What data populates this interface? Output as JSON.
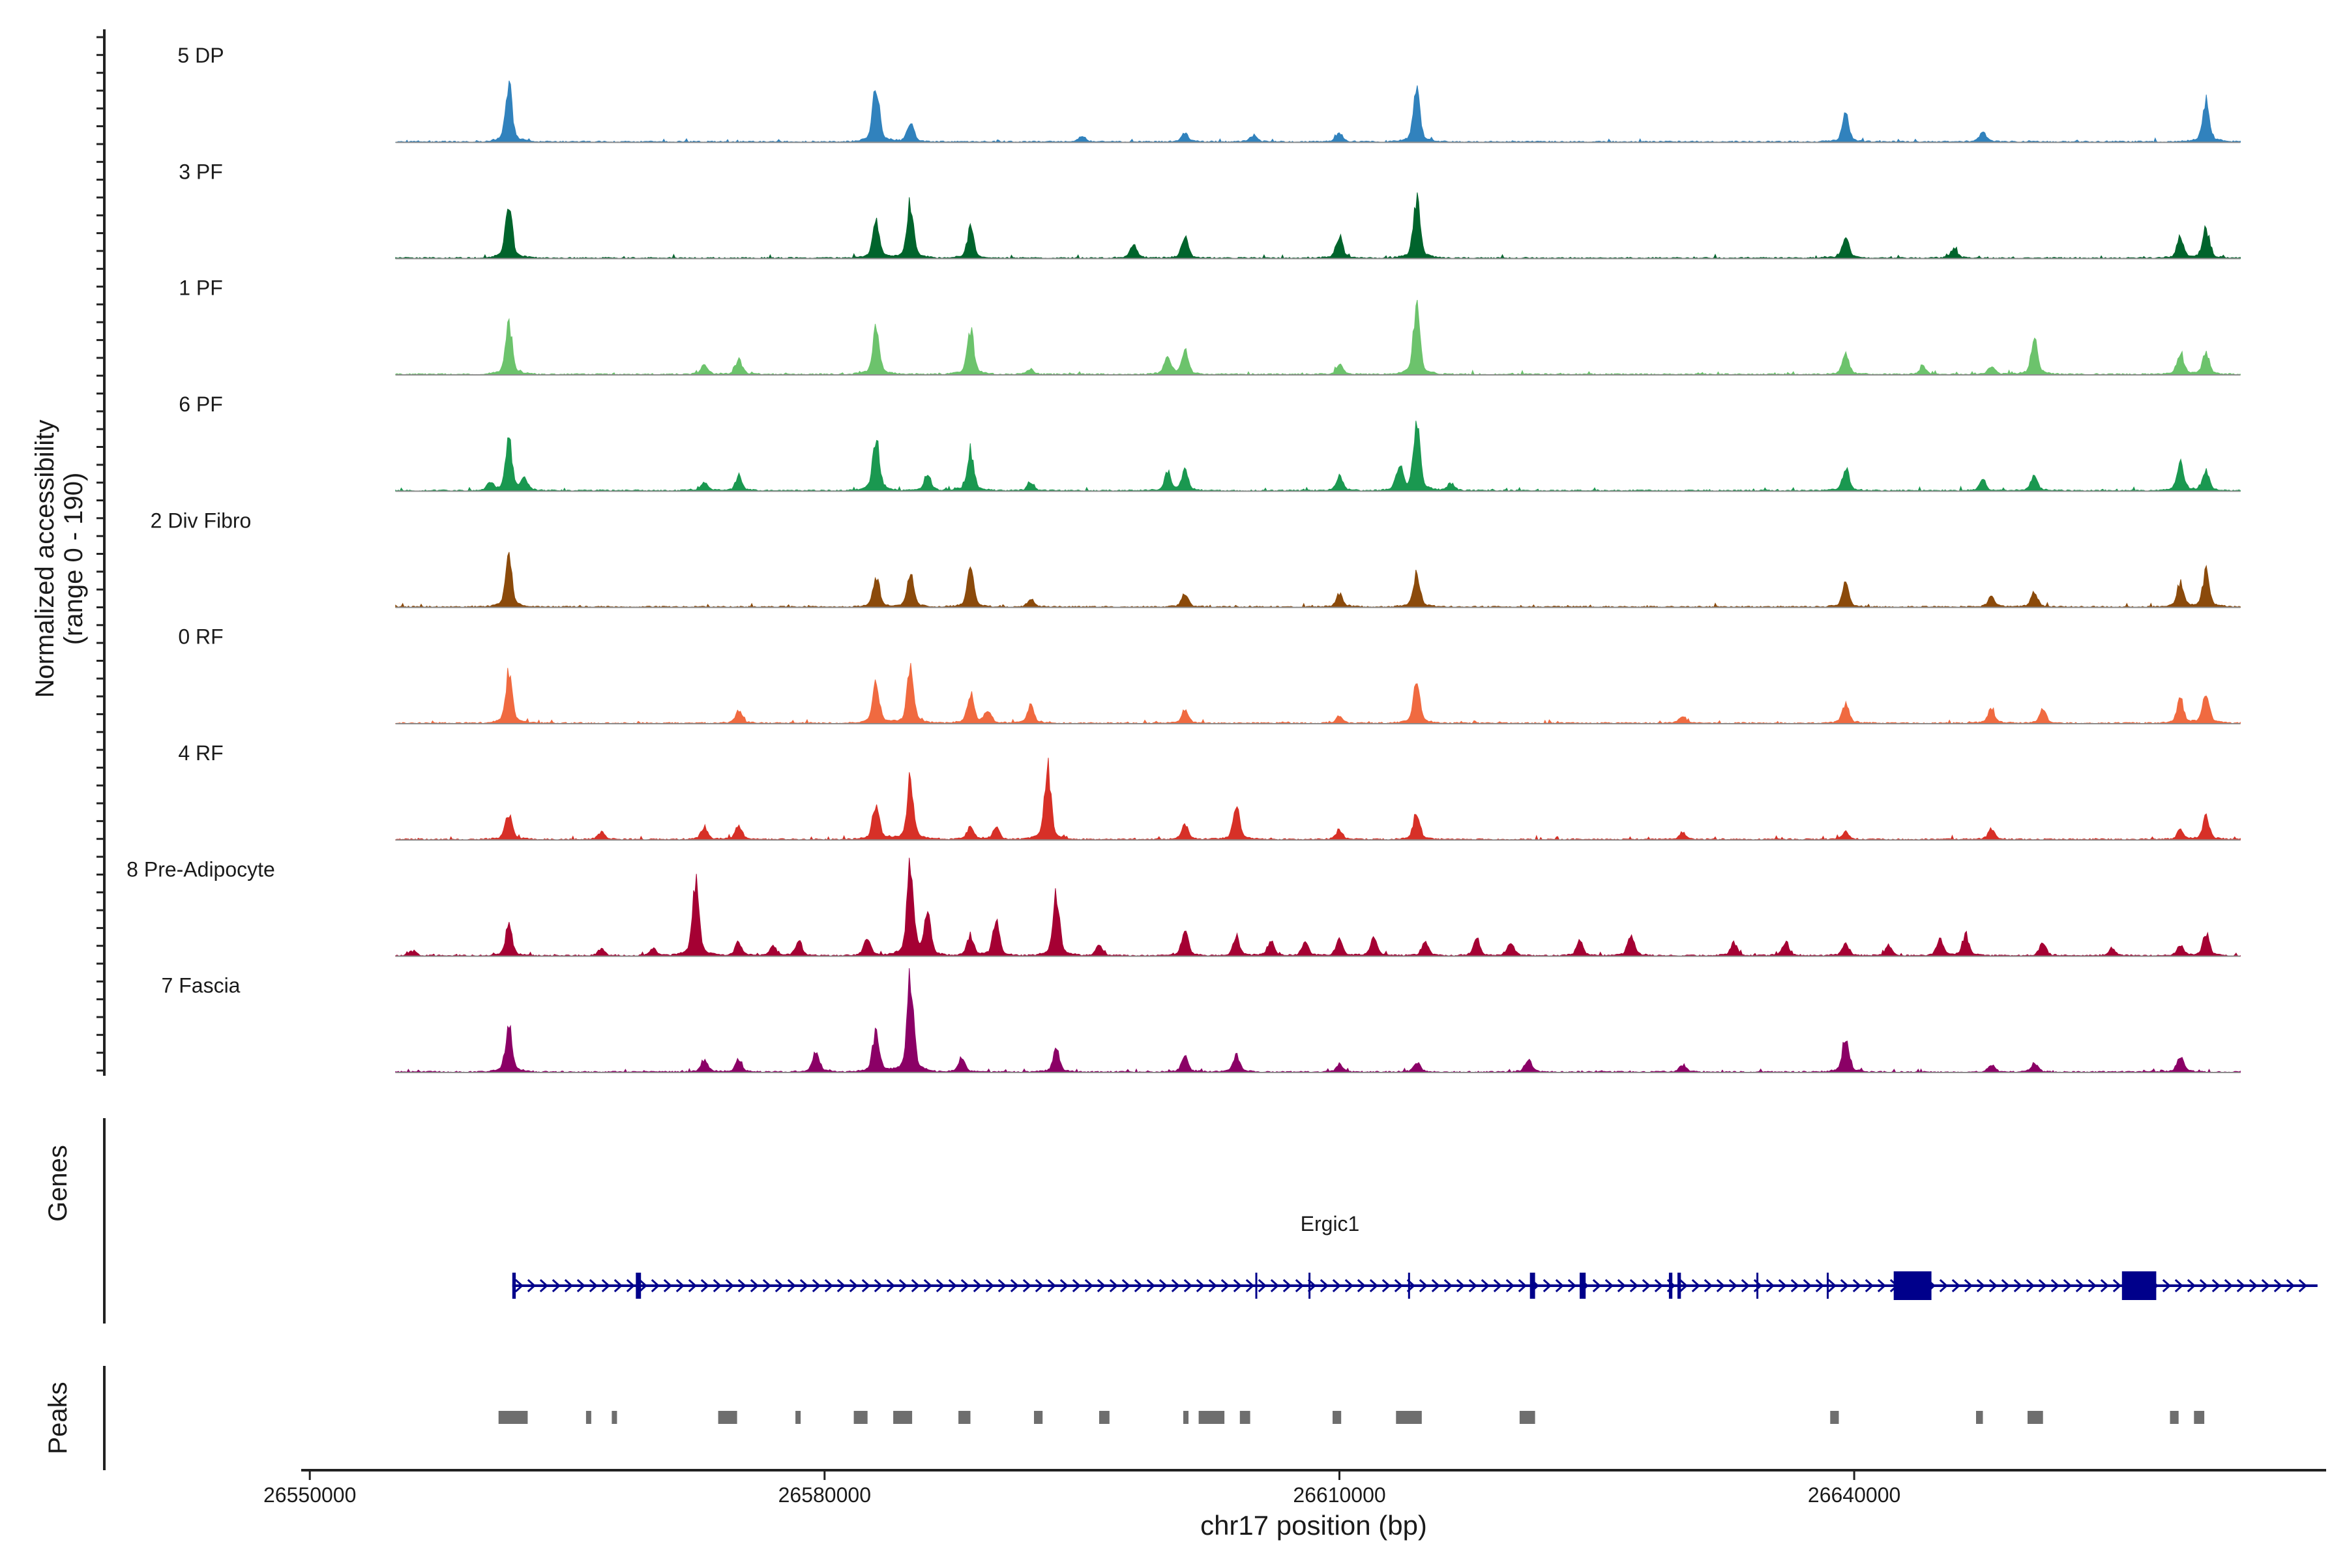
{
  "chart_data": {
    "type": "area",
    "title": "",
    "ylabel_line1": "Normalized accessibility",
    "ylabel_line2": "(range 0 - 190)",
    "ylim": [
      0,
      190
    ],
    "xlabel": "chr17 position (bp)",
    "xlim": [
      26549500,
      26667500
    ],
    "xticks": [
      {
        "value": 26550000,
        "label": "26550000"
      },
      {
        "value": 26580000,
        "label": "26580000"
      },
      {
        "value": 26610000,
        "label": "26610000"
      },
      {
        "value": 26640000,
        "label": "26640000"
      }
    ],
    "signal_range": [
      26555000,
      26662500
    ],
    "tracks": [
      {
        "name": "5 DP",
        "color": "#3182BD",
        "peaks": [
          [
            26561600,
            115
          ],
          [
            26583000,
            115
          ],
          [
            26585000,
            40
          ],
          [
            26595000,
            12
          ],
          [
            26601000,
            18
          ],
          [
            26605000,
            14
          ],
          [
            26610000,
            18
          ],
          [
            26614500,
            100
          ],
          [
            26639500,
            55
          ],
          [
            26647500,
            20
          ],
          [
            26660500,
            85
          ]
        ]
      },
      {
        "name": "3 PF",
        "color": "#00642C",
        "peaks": [
          [
            26561600,
            105
          ],
          [
            26583000,
            75
          ],
          [
            26585000,
            110
          ],
          [
            26588500,
            58
          ],
          [
            26598000,
            28
          ],
          [
            26601000,
            42
          ],
          [
            26610000,
            45
          ],
          [
            26614500,
            115
          ],
          [
            26639500,
            45
          ],
          [
            26645800,
            20
          ],
          [
            26659000,
            40
          ],
          [
            26660500,
            58
          ]
        ]
      },
      {
        "name": "1 PF",
        "color": "#6CC36C",
        "peaks": [
          [
            26561600,
            95
          ],
          [
            26573000,
            18
          ],
          [
            26575000,
            30
          ],
          [
            26583000,
            95
          ],
          [
            26588500,
            90
          ],
          [
            26592000,
            10
          ],
          [
            26600000,
            36
          ],
          [
            26601000,
            46
          ],
          [
            26610000,
            20
          ],
          [
            26614500,
            130
          ],
          [
            26639500,
            38
          ],
          [
            26644000,
            16
          ],
          [
            26648000,
            16
          ],
          [
            26650500,
            68
          ],
          [
            26659000,
            45
          ],
          [
            26660500,
            42
          ]
        ]
      },
      {
        "name": "6 PF",
        "color": "#1A9850",
        "peaks": [
          [
            26560500,
            15
          ],
          [
            26561600,
            100
          ],
          [
            26562500,
            25
          ],
          [
            26573000,
            18
          ],
          [
            26575000,
            28
          ],
          [
            26583000,
            110
          ],
          [
            26586000,
            32
          ],
          [
            26588500,
            80
          ],
          [
            26592000,
            14
          ],
          [
            26600000,
            35
          ],
          [
            26601000,
            40
          ],
          [
            26610000,
            30
          ],
          [
            26613500,
            50
          ],
          [
            26614500,
            130
          ],
          [
            26616500,
            15
          ],
          [
            26639500,
            45
          ],
          [
            26647500,
            20
          ],
          [
            26650500,
            30
          ],
          [
            26659000,
            55
          ],
          [
            26660500,
            40
          ]
        ]
      },
      {
        "name": "2 Div Fibro",
        "color": "#8B4A0B",
        "peaks": [
          [
            26561600,
            95
          ],
          [
            26583000,
            55
          ],
          [
            26585000,
            65
          ],
          [
            26588500,
            70
          ],
          [
            26592000,
            15
          ],
          [
            26601000,
            25
          ],
          [
            26610000,
            25
          ],
          [
            26614500,
            68
          ],
          [
            26639500,
            45
          ],
          [
            26648000,
            20
          ],
          [
            26650500,
            30
          ],
          [
            26659000,
            48
          ],
          [
            26660500,
            70
          ]
        ]
      },
      {
        "name": "0 RF",
        "color": "#F06A40",
        "peaks": [
          [
            26561600,
            100
          ],
          [
            26575000,
            25
          ],
          [
            26583000,
            80
          ],
          [
            26585000,
            105
          ],
          [
            26588500,
            60
          ],
          [
            26589500,
            25
          ],
          [
            26592000,
            35
          ],
          [
            26601000,
            25
          ],
          [
            26610000,
            15
          ],
          [
            26614500,
            85
          ],
          [
            26630000,
            15
          ],
          [
            26639500,
            40
          ],
          [
            26648000,
            30
          ],
          [
            26651000,
            28
          ],
          [
            26659000,
            48
          ],
          [
            26660500,
            60
          ]
        ]
      },
      {
        "name": "4 RF",
        "color": "#D73027",
        "peaks": [
          [
            26561600,
            55
          ],
          [
            26567000,
            15
          ],
          [
            26573000,
            25
          ],
          [
            26575000,
            30
          ],
          [
            26583000,
            75
          ],
          [
            26585000,
            120
          ],
          [
            26588500,
            28
          ],
          [
            26590000,
            22
          ],
          [
            26593000,
            140
          ],
          [
            26601000,
            30
          ],
          [
            26604000,
            65
          ],
          [
            26610000,
            20
          ],
          [
            26614500,
            52
          ],
          [
            26630000,
            12
          ],
          [
            26639500,
            15
          ],
          [
            26648000,
            22
          ],
          [
            26659000,
            18
          ],
          [
            26660500,
            45
          ]
        ]
      },
      {
        "name": "8 Pre-Adipocyte",
        "color": "#A50033",
        "peaks": [
          [
            26556000,
            10
          ],
          [
            26561600,
            60
          ],
          [
            26567000,
            15
          ],
          [
            26570000,
            14
          ],
          [
            26572500,
            145
          ],
          [
            26575000,
            28
          ],
          [
            26577000,
            18
          ],
          [
            26578500,
            30
          ],
          [
            26582500,
            40
          ],
          [
            26585000,
            190
          ],
          [
            26586000,
            80
          ],
          [
            26588500,
            40
          ],
          [
            26590000,
            70
          ],
          [
            26593500,
            120
          ],
          [
            26596000,
            20
          ],
          [
            26601000,
            50
          ],
          [
            26604000,
            35
          ],
          [
            26606000,
            30
          ],
          [
            26608000,
            25
          ],
          [
            26610000,
            30
          ],
          [
            26612000,
            40
          ],
          [
            26615000,
            30
          ],
          [
            26618000,
            35
          ],
          [
            26620000,
            25
          ],
          [
            26624000,
            28
          ],
          [
            26627000,
            45
          ],
          [
            26633000,
            25
          ],
          [
            26636000,
            28
          ],
          [
            26639500,
            25
          ],
          [
            26642000,
            20
          ],
          [
            26645000,
            35
          ],
          [
            26646500,
            40
          ],
          [
            26651000,
            25
          ],
          [
            26655000,
            15
          ],
          [
            26659000,
            20
          ],
          [
            26660500,
            45
          ]
        ]
      },
      {
        "name": "7 Fascia",
        "color": "#8B0066",
        "peaks": [
          [
            26561600,
            95
          ],
          [
            26573000,
            25
          ],
          [
            26575000,
            25
          ],
          [
            26579500,
            45
          ],
          [
            26583000,
            85
          ],
          [
            26585000,
            190
          ],
          [
            26588000,
            30
          ],
          [
            26593500,
            45
          ],
          [
            26601000,
            30
          ],
          [
            26604000,
            35
          ],
          [
            26610000,
            15
          ],
          [
            26614500,
            20
          ],
          [
            26621000,
            25
          ],
          [
            26630000,
            15
          ],
          [
            26639500,
            70
          ],
          [
            26648000,
            15
          ],
          [
            26650500,
            18
          ],
          [
            26659000,
            30
          ]
        ]
      }
    ],
    "gene_panel_label": "Genes",
    "gene": {
      "name": "Ergic1",
      "color": "#00008B",
      "start": 26561800,
      "end": 26667000,
      "exons": [
        [
          26561800,
          26562000
        ],
        [
          26569000,
          26569300
        ],
        [
          26605100,
          26605200
        ],
        [
          26608200,
          26608300
        ],
        [
          26614000,
          26614100
        ],
        [
          26621100,
          26621400
        ],
        [
          26624000,
          26624350
        ],
        [
          26629200,
          26629400
        ],
        [
          26629700,
          26629900
        ],
        [
          26634300,
          26634400
        ],
        [
          26638400,
          26638500
        ],
        [
          26642300,
          26644500
        ],
        [
          26655600,
          26657600
        ]
      ]
    },
    "peaks_panel_label": "Peaks",
    "peaks_color": "#6E6E6E",
    "peak_regions": [
      [
        26561000,
        26562700
      ],
      [
        26566100,
        26566300
      ],
      [
        26567600,
        26567800
      ],
      [
        26573800,
        26574900
      ],
      [
        26578300,
        26578500
      ],
      [
        26581700,
        26582500
      ],
      [
        26584000,
        26585100
      ],
      [
        26587800,
        26588500
      ],
      [
        26592200,
        26592700
      ],
      [
        26596000,
        26596600
      ],
      [
        26600900,
        26601200
      ],
      [
        26601800,
        26603300
      ],
      [
        26604200,
        26604800
      ],
      [
        26609600,
        26610100
      ],
      [
        26613300,
        26614800
      ],
      [
        26620500,
        26621400
      ],
      [
        26638600,
        26639100
      ],
      [
        26647100,
        26647500
      ],
      [
        26650100,
        26651000
      ],
      [
        26658400,
        26658900
      ],
      [
        26659800,
        26660400
      ]
    ]
  }
}
